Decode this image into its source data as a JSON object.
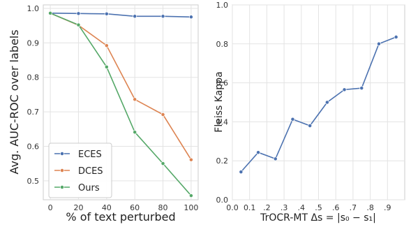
{
  "chart_data": [
    {
      "type": "line",
      "xlabel": "% of text perturbed",
      "ylabel": "Avg. AUC-ROC over labels",
      "x": [
        0,
        20,
        40,
        60,
        80,
        100
      ],
      "xticks": [
        0,
        20,
        40,
        60,
        80,
        100
      ],
      "xtick_labels": [
        "0",
        "20",
        "40",
        "60",
        "80",
        "100"
      ],
      "xlim": [
        -5,
        105
      ],
      "yticks": [
        0.5,
        0.6,
        0.7,
        0.8,
        0.9,
        1.0
      ],
      "ytick_labels": [
        "0.5",
        "0.6",
        "0.7",
        "0.8",
        "0.9",
        "1.0"
      ],
      "ylim": [
        0.445,
        1.01
      ],
      "grid": true,
      "legend_position": "bottom-left",
      "series": [
        {
          "name": "ECES",
          "color": "#4c72b0",
          "values": [
            0.986,
            0.985,
            0.984,
            0.977,
            0.977,
            0.975
          ]
        },
        {
          "name": "DCES",
          "color": "#dd8452",
          "values": [
            0.986,
            0.951,
            0.892,
            0.736,
            0.692,
            0.561
          ]
        },
        {
          "name": "Ours",
          "color": "#55a868",
          "values": [
            0.986,
            0.952,
            0.83,
            0.641,
            0.55,
            0.457
          ]
        }
      ]
    },
    {
      "type": "line",
      "xlabel": "TrOCR-MT  Δs = |s₀ − s₁|",
      "ylabel": "Fleiss Kappa",
      "x": [
        0.05,
        0.15,
        0.25,
        0.35,
        0.45,
        0.55,
        0.65,
        0.75,
        0.85,
        0.95
      ],
      "xticks": [
        0.0,
        0.1,
        0.2,
        0.3,
        0.4,
        0.5,
        0.6,
        0.7,
        0.8,
        0.9
      ],
      "xtick_labels": [
        "0.0",
        "0.1",
        ".2",
        ".3",
        ".4",
        ".5",
        ".6",
        ".7",
        ".8",
        ".9"
      ],
      "xlim": [
        0.0,
        1.0
      ],
      "yticks": [
        0.0,
        0.2,
        0.4,
        0.6,
        0.8,
        1.0
      ],
      "ytick_labels": [
        "0.0",
        "0.2",
        "0.4",
        "0.6",
        "0.8",
        "1.0"
      ],
      "ylim": [
        0.0,
        1.0
      ],
      "grid": true,
      "series": [
        {
          "color": "#4c72b0",
          "values": [
            0.143,
            0.243,
            0.21,
            0.413,
            0.38,
            0.5,
            0.565,
            0.573,
            0.8,
            0.835
          ]
        }
      ]
    }
  ]
}
